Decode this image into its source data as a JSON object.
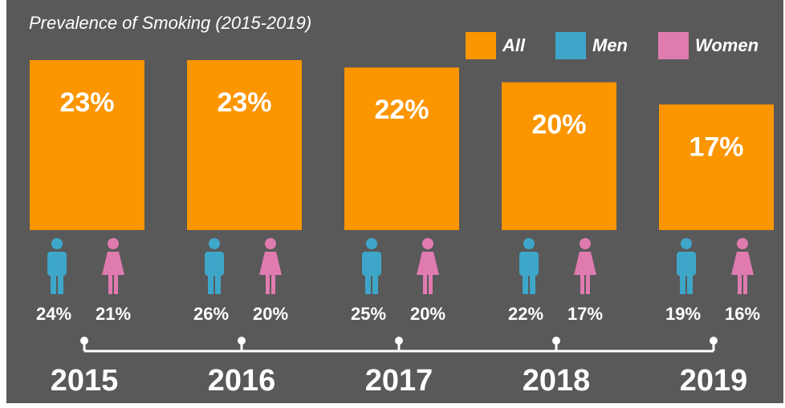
{
  "chart_data": {
    "type": "bar",
    "title": "Prevalence of Smoking (2015-2019)",
    "categories": [
      "2015",
      "2016",
      "2017",
      "2018",
      "2019"
    ],
    "series": [
      {
        "name": "All",
        "color": "#fb9500",
        "values": [
          23,
          23,
          22,
          20,
          17
        ],
        "value_labels": [
          "23%",
          "23%",
          "22%",
          "20%",
          "17%"
        ]
      },
      {
        "name": "Men",
        "color": "#3ea6c9",
        "values": [
          24,
          26,
          25,
          22,
          19
        ],
        "value_labels": [
          "24%",
          "26%",
          "25%",
          "22%",
          "19%"
        ]
      },
      {
        "name": "Women",
        "color": "#e07bb0",
        "values": [
          21,
          20,
          20,
          17,
          16
        ],
        "value_labels": [
          "21%",
          "20%",
          "20%",
          "17%",
          "16%"
        ]
      }
    ]
  }
}
